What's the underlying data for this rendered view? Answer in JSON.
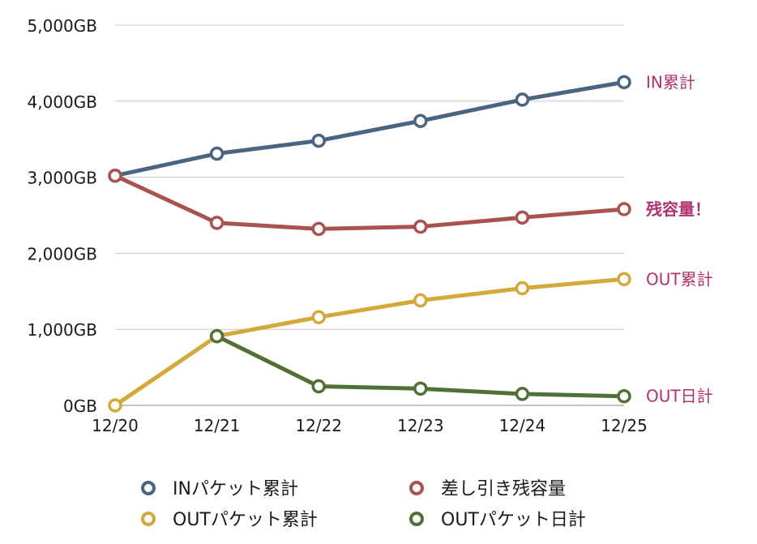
{
  "chart_data": {
    "type": "line",
    "categories": [
      "12/20",
      "12/21",
      "12/22",
      "12/23",
      "12/24",
      "12/25"
    ],
    "ylim": [
      0,
      5000
    ],
    "yticks": [
      "0GB",
      "1,000GB",
      "2,000GB",
      "3,000GB",
      "4,000GB",
      "5,000GB"
    ],
    "ytick_values": [
      0,
      1000,
      2000,
      3000,
      4000,
      5000
    ],
    "grid": true,
    "legend_position": "bottom",
    "series": [
      {
        "name": "INパケット累計",
        "color": "#4b6580",
        "values": [
          3020,
          3310,
          3480,
          3740,
          4020,
          4250
        ],
        "end_label": "IN累計",
        "end_bold": false
      },
      {
        "name": "差し引き残容量",
        "color": "#a8534f",
        "values": [
          3020,
          2400,
          2320,
          2350,
          2470,
          2580
        ],
        "end_label": "残容量！",
        "end_bold": true
      },
      {
        "name": "OUTパケット累計",
        "color": "#d4a93c",
        "values": [
          0,
          910,
          1160,
          1380,
          1540,
          1660
        ],
        "end_label": "OUT累計",
        "end_bold": false
      },
      {
        "name": "OUTパケット日計",
        "color": "#4f7136",
        "values": [
          null,
          910,
          250,
          220,
          150,
          120
        ],
        "end_label": "OUT日計",
        "end_bold": false
      }
    ]
  }
}
